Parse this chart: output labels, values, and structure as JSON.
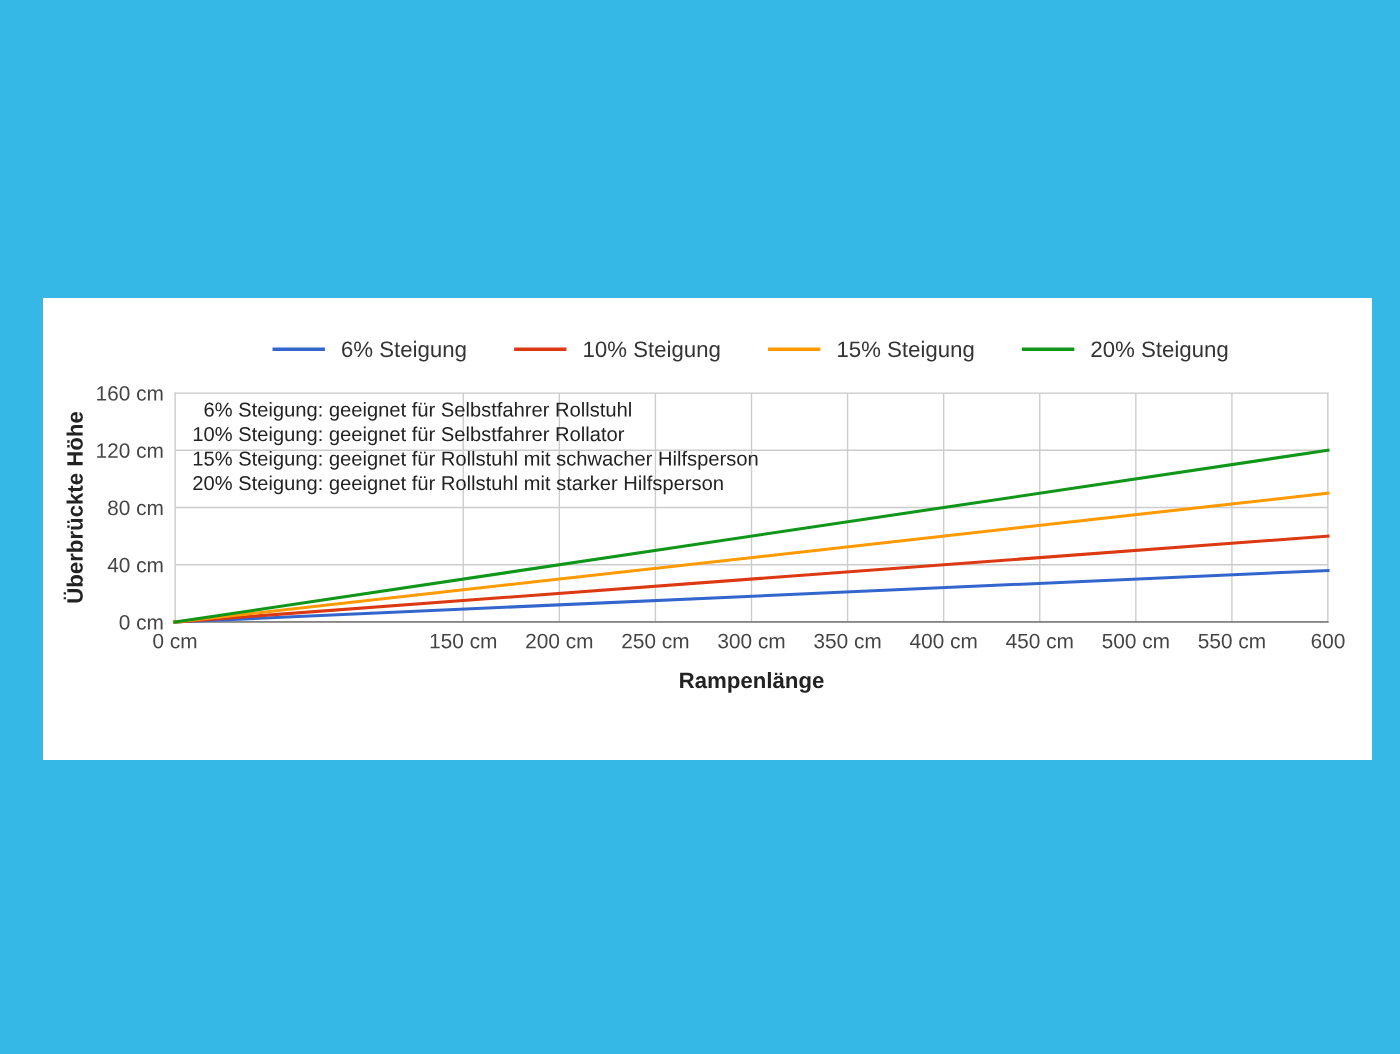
{
  "chart_data": {
    "type": "line",
    "xlabel": "Rampenlänge",
    "ylabel": "Überbrückte Höhe",
    "x": [
      0,
      600
    ],
    "series": [
      {
        "name": "6% Steigung",
        "color": "#3366cc",
        "values": [
          0,
          36
        ]
      },
      {
        "name": "10% Steigung",
        "color": "#dc3912",
        "values": [
          0,
          60
        ]
      },
      {
        "name": "15% Steigung",
        "color": "#ff9900",
        "values": [
          0,
          90
        ]
      },
      {
        "name": "20% Steigung",
        "color": "#109618",
        "values": [
          0,
          120
        ]
      }
    ],
    "xlim": [
      0,
      600
    ],
    "xticks": [
      {
        "value": 0,
        "label": "0 cm"
      },
      {
        "value": 150,
        "label": "150 cm"
      },
      {
        "value": 200,
        "label": "200 cm"
      },
      {
        "value": 250,
        "label": "250 cm"
      },
      {
        "value": 300,
        "label": "300 cm"
      },
      {
        "value": 350,
        "label": "350 cm"
      },
      {
        "value": 400,
        "label": "400 cm"
      },
      {
        "value": 450,
        "label": "450 cm"
      },
      {
        "value": 500,
        "label": "500 cm"
      },
      {
        "value": 550,
        "label": "550 cm"
      },
      {
        "value": 600,
        "label": "600"
      }
    ],
    "ylim": [
      0,
      160
    ],
    "yticks": [
      {
        "value": 0,
        "label": "0 cm"
      },
      {
        "value": 40,
        "label": "40 cm"
      },
      {
        "value": 80,
        "label": "80 cm"
      },
      {
        "value": 120,
        "label": "120 cm"
      },
      {
        "value": 160,
        "label": "160 cm"
      }
    ],
    "annotations": [
      "  6% Steigung: geeignet für Selbstfahrer Rollstuhl",
      "10% Steigung: geeignet für Selbstfahrer Rollator",
      "15% Steigung: geeignet für Rollstuhl mit schwacher Hilfsperson",
      "20% Steigung: geeignet für Rollstuhl mit starker Hilfsperson"
    ],
    "grid": true,
    "legend": "top",
    "marker": "none",
    "line_style": "solid"
  }
}
